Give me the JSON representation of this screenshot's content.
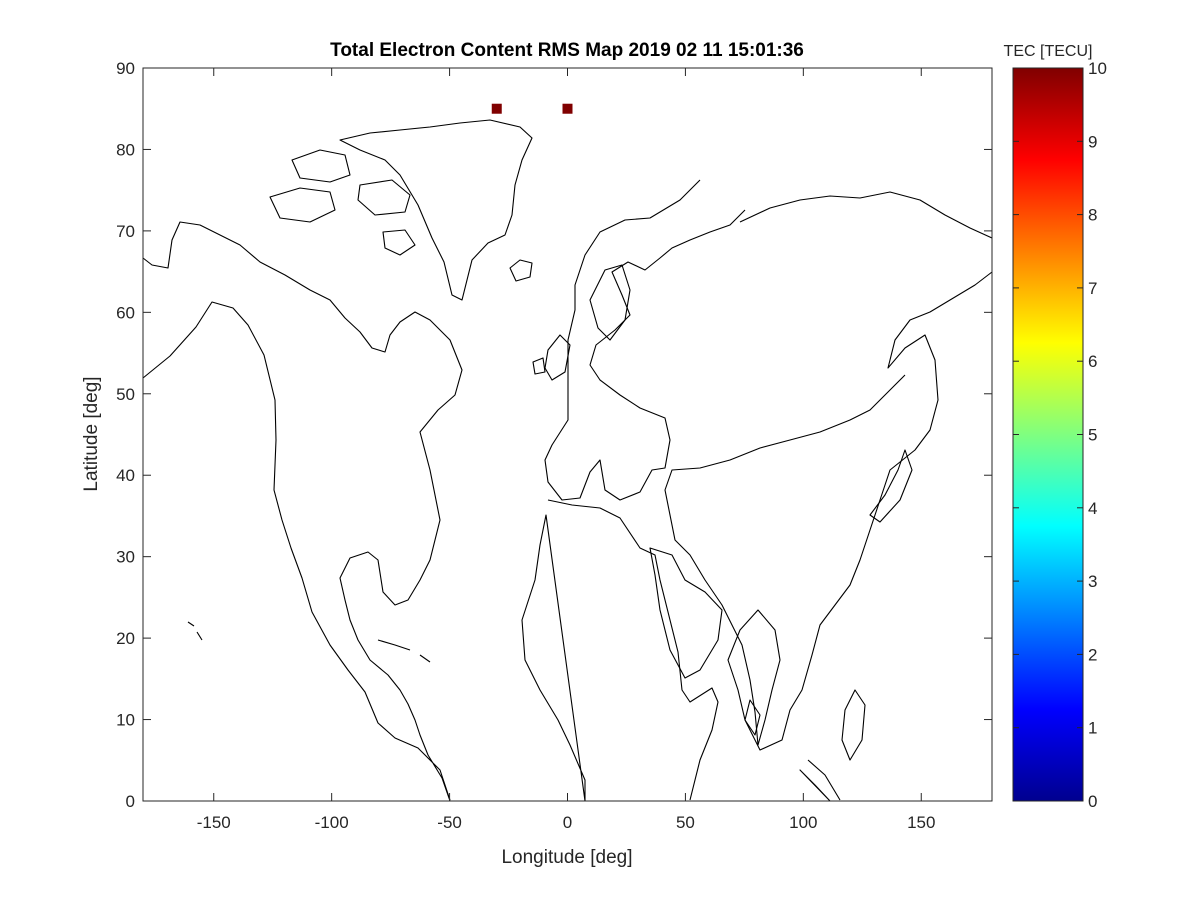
{
  "chart_data": {
    "type": "heatmap",
    "title": "Total Electron Content RMS Map 2019 02 11 15:01:36",
    "xlabel": "Longitude [deg]",
    "ylabel": "Latitude [deg]",
    "xlim": [
      -180,
      180
    ],
    "ylim": [
      0,
      90
    ],
    "xticks": [
      "-150",
      "-100",
      "-50",
      "0",
      "50",
      "100",
      "150"
    ],
    "xtick_values": [
      -150,
      -100,
      -50,
      0,
      50,
      100,
      150
    ],
    "yticks": [
      "0",
      "10",
      "20",
      "30",
      "40",
      "50",
      "60",
      "70",
      "80",
      "90"
    ],
    "ytick_values": [
      0,
      10,
      20,
      30,
      40,
      50,
      60,
      70,
      80,
      90
    ],
    "grid": false,
    "basemap": "world coastlines",
    "colorbar": {
      "title": "TEC [TECU]",
      "colormap": "jet",
      "clim": [
        0,
        10
      ],
      "ticks": [
        "0",
        "1",
        "2",
        "3",
        "4",
        "5",
        "6",
        "7",
        "8",
        "9",
        "10"
      ],
      "tick_values": [
        0,
        1,
        2,
        3,
        4,
        5,
        6,
        7,
        8,
        9,
        10
      ]
    },
    "points": [
      {
        "lon": -30,
        "lat": 85,
        "value": 10,
        "color": "#800000"
      },
      {
        "lon": 0,
        "lat": 85,
        "value": 10,
        "color": "#800000"
      }
    ]
  }
}
